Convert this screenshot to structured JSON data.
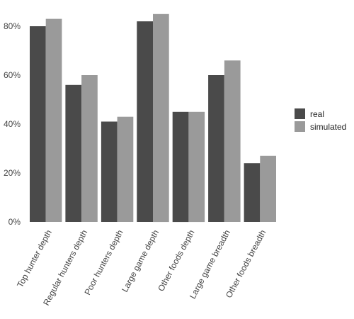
{
  "chart_data": {
    "type": "bar",
    "categories": [
      "Top hunter depth",
      "Regular hunters depth",
      "Poor hunters depth",
      "Large game depth",
      "Other foods depth",
      "Large game breadth",
      "Other foods breadth"
    ],
    "series": [
      {
        "name": "real",
        "color": "#4a4a4a",
        "values": [
          80,
          56,
          41,
          82,
          45,
          60,
          24
        ]
      },
      {
        "name": "simulated",
        "color": "#9a9a9a",
        "values": [
          83,
          60,
          43,
          85,
          45,
          66,
          27
        ]
      }
    ],
    "ylim": [
      0,
      80
    ],
    "yticks": [
      0,
      20,
      40,
      60,
      80
    ],
    "ytick_labels": [
      "0%",
      "20%",
      "40%",
      "60%",
      "80%"
    ],
    "grid": false,
    "legend": "right"
  }
}
